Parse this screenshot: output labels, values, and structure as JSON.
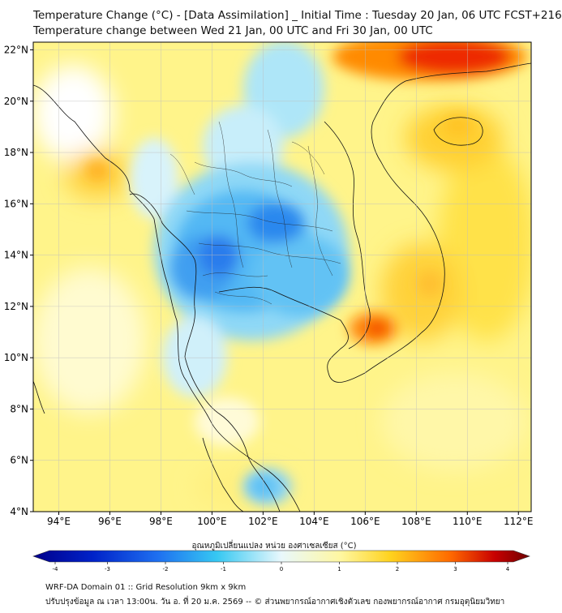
{
  "header": {
    "title_line1": "Temperature Change (°C) - [Data Assimilation] _ Initial Time : Tuesday 20 Jan, 06 UTC FCST+216",
    "title_line2": "Temperature change between Wed 21 Jan, 00 UTC and Fri 30 Jan, 00 UTC"
  },
  "map": {
    "lat_labels": [
      "22°N",
      "20°N",
      "18°N",
      "16°N",
      "14°N",
      "12°N",
      "10°N",
      "8°N",
      "6°N",
      "4°N"
    ],
    "lat_values": [
      22,
      20,
      18,
      16,
      14,
      12,
      10,
      8,
      6,
      4
    ],
    "lon_labels": [
      "94°E",
      "96°E",
      "98°E",
      "100°E",
      "102°E",
      "104°E",
      "106°E",
      "108°E",
      "110°E",
      "112°E"
    ],
    "lon_values": [
      94,
      96,
      98,
      100,
      102,
      104,
      106,
      108,
      110,
      112
    ],
    "extent": {
      "lon_min": 93,
      "lon_max": 112.5,
      "lat_min": 4,
      "lat_max": 22.3
    }
  },
  "colorbar": {
    "title": "อุณหภูมิเปลี่ยนแปลง หน่วย องศาเซลเซียส (°C)",
    "tick_labels": [
      "-4",
      "-3",
      "-2",
      "-1",
      "0",
      "1",
      "2",
      "3",
      "4"
    ],
    "tick_values": [
      -4,
      -3,
      -2,
      -1,
      0,
      1,
      2,
      3,
      4
    ],
    "colors": [
      "#00008b",
      "#0022c8",
      "#1e6ff0",
      "#36c8f2",
      "#e9f8fc",
      "#fff7a0",
      "#ffd21e",
      "#ff6a00",
      "#c80000",
      "#6e0000"
    ]
  },
  "footer": {
    "line1": "WRF-DA Domain 01 :: Grid Resolution 9km x 9km",
    "line2": "ปรับปรุงข้อมูล ณ เวลา 13:00น. วัน อ. ที่ 20 ม.ค. 2569 -- © ส่วนพยากรณ์อากาศเชิงตัวเลข กองพยากรณ์อากาศ กรมอุตุนิยมวิทยา"
  }
}
